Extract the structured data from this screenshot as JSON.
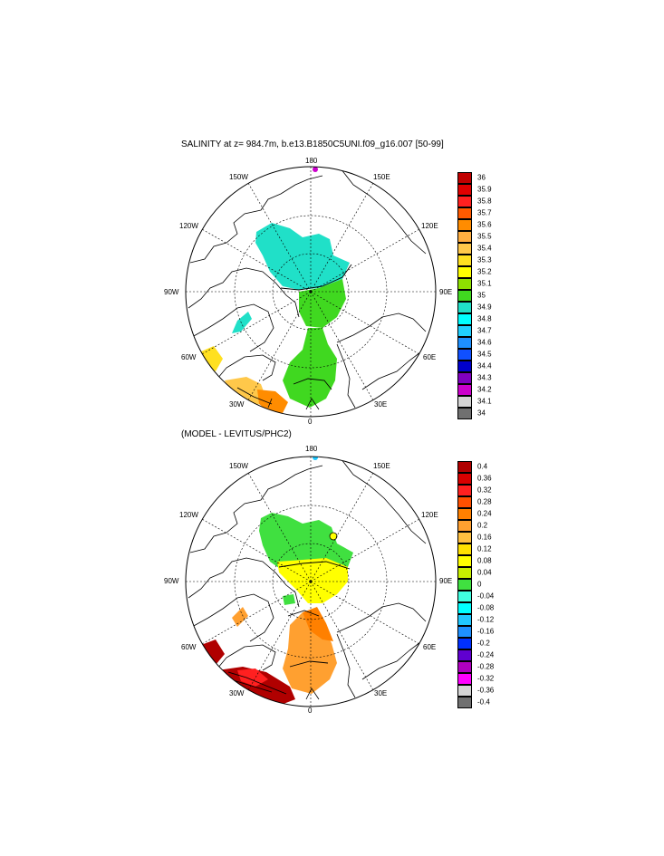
{
  "panels": [
    {
      "title": "SALINITY at z= 984.7m, b.e13.B1850C5UNI.f09_g16.007 [50-99]",
      "lon_labels": {
        "lon_180": "180",
        "lon_150w": "150W",
        "lon_150e": "150E",
        "lon_120w": "120W",
        "lon_120e": "120E",
        "lon_90w": "90W",
        "lon_90e": "90E",
        "lon_60w": "60W",
        "lon_60e": "60E",
        "lon_30w": "30W",
        "lon_30e": "30E",
        "lon_0": "0"
      },
      "colorbar": {
        "labels": [
          "36",
          "35.9",
          "35.8",
          "35.7",
          "35.6",
          "35.5",
          "35.4",
          "35.3",
          "35.2",
          "35.1",
          "35",
          "34.9",
          "34.8",
          "34.7",
          "34.6",
          "34.5",
          "34.4",
          "34.3",
          "34.2",
          "34.1",
          "34"
        ],
        "colors": [
          "#c00000",
          "#e00000",
          "#ff2020",
          "#ff5a00",
          "#ff8c00",
          "#ffae40",
          "#ffc84a",
          "#ffe020",
          "#ffff00",
          "#8ee000",
          "#40d820",
          "#20e0c8",
          "#00ffff",
          "#20d0ff",
          "#1e90ff",
          "#1050ff",
          "#0000cc",
          "#8000c0",
          "#cc00cc",
          "#d4d4d4",
          "#707070"
        ]
      }
    },
    {
      "title": "(MODEL - LEVITUS/PHC2)",
      "lon_labels": {
        "lon_180": "180",
        "lon_150w": "150W",
        "lon_150e": "150E",
        "lon_120w": "120W",
        "lon_120e": "120E",
        "lon_90w": "90W",
        "lon_90e": "90E",
        "lon_60w": "60W",
        "lon_60e": "60E",
        "lon_30w": "30W",
        "lon_30e": "30E",
        "lon_0": "0"
      },
      "colorbar": {
        "labels": [
          "0.4",
          "0.36",
          "0.32",
          "0.28",
          "0.24",
          "0.2",
          "0.16",
          "0.12",
          "0.08",
          "0.04",
          "0",
          "-0.04",
          "-0.08",
          "-0.12",
          "-0.16",
          "-0.2",
          "-0.24",
          "-0.28",
          "-0.32",
          "-0.36",
          "-0.4"
        ],
        "colors": [
          "#b00000",
          "#d80000",
          "#ff2020",
          "#ff5000",
          "#ff8000",
          "#ffa030",
          "#ffc040",
          "#ffe000",
          "#ffff00",
          "#c8f000",
          "#40e040",
          "#40ffe0",
          "#00ffff",
          "#20c8ff",
          "#1e90ff",
          "#0030ff",
          "#6000d0",
          "#b000c0",
          "#ff00ff",
          "#d4d4d4",
          "#707070"
        ]
      }
    }
  ]
}
